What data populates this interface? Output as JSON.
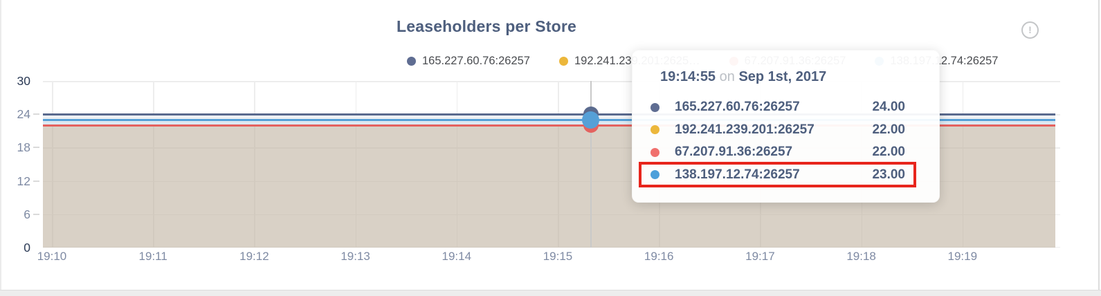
{
  "title": "Leaseholders per Store",
  "info_icon_glyph": "!",
  "legend": {
    "items": [
      {
        "label": "165.227.60.76:26257",
        "color": "#5f6d92"
      },
      {
        "label": "192.241.239.201:2625…",
        "color": "#ecb73b"
      },
      {
        "label": "67.207.91.36:26257",
        "color": "#e4625f"
      },
      {
        "label": "138.197.12.74:26257",
        "color": "#55a0d7"
      }
    ]
  },
  "tooltip": {
    "time": "19:14:55",
    "on_word": "on",
    "date": "Sep 1st, 2017",
    "rows": [
      {
        "label": "165.227.60.76:26257",
        "value": "24.00",
        "color": "#5f6d92"
      },
      {
        "label": "192.241.239.201:26257",
        "value": "22.00",
        "color": "#ecb73b"
      },
      {
        "label": "67.207.91.36:26257",
        "value": "22.00",
        "color": "#f0706d"
      },
      {
        "label": "138.197.12.74:26257",
        "value": "23.00",
        "color": "#4da0da"
      }
    ],
    "highlighted_row_index": 3,
    "highlight_color": "#e8251c"
  },
  "axes": {
    "y_ticks": [
      {
        "label": "30",
        "value": 30,
        "strong": true
      },
      {
        "label": "24",
        "value": 24,
        "strong": false
      },
      {
        "label": "18",
        "value": 18,
        "strong": false
      },
      {
        "label": "12",
        "value": 12,
        "strong": false
      },
      {
        "label": "6",
        "value": 6,
        "strong": false
      },
      {
        "label": "0",
        "value": 0,
        "strong": true
      }
    ],
    "x_ticks": [
      "19:10",
      "19:11",
      "19:12",
      "19:13",
      "19:14",
      "19:15",
      "19:16",
      "19:17",
      "19:18",
      "19:19"
    ]
  },
  "chart_data": {
    "type": "line",
    "title": "Leaseholders per Store",
    "x": [
      "19:10",
      "19:11",
      "19:12",
      "19:13",
      "19:14",
      "19:15",
      "19:16",
      "19:17",
      "19:18",
      "19:19"
    ],
    "xlabel": "",
    "ylabel": "",
    "ylim": [
      0,
      30
    ],
    "yticks": [
      0,
      6,
      12,
      18,
      24,
      30
    ],
    "grid": true,
    "legend_position": "top",
    "series": [
      {
        "name": "165.227.60.76:26257",
        "color": "#5a6a8e",
        "values": [
          24,
          24,
          24,
          24,
          24,
          24,
          24,
          24,
          24,
          24
        ]
      },
      {
        "name": "192.241.239.201:26257",
        "color": "#ecb73b",
        "values": [
          22,
          22,
          22,
          22,
          22,
          22,
          22,
          22,
          22,
          22
        ]
      },
      {
        "name": "67.207.91.36:26257",
        "color": "#e4625f",
        "values": [
          22,
          22,
          22,
          22,
          22,
          22,
          22,
          22,
          22,
          22
        ]
      },
      {
        "name": "138.197.12.74:26257",
        "color": "#55a0d7",
        "values": [
          23,
          23,
          23,
          23,
          23,
          23,
          23,
          23,
          23,
          23
        ]
      }
    ],
    "fill_bands": [
      {
        "from": 24,
        "to": 23,
        "color": "#edf0f4"
      },
      {
        "from": 23,
        "to": 22,
        "color": "#dde8f2"
      },
      {
        "from": 22,
        "to": 0,
        "color": "rgba(194,180,163,0.62)"
      }
    ],
    "hover": {
      "time": "19:14:55",
      "date": "Sep 1st, 2017",
      "values": [
        24,
        22,
        22,
        23
      ],
      "highlighted_series": "138.197.12.74:26257",
      "markers": [
        {
          "series_index": 0,
          "value": 24,
          "diameter": 22
        },
        {
          "series_index": 2,
          "value": 22,
          "diameter": 22
        },
        {
          "series_index": 3,
          "value": 23,
          "diameter": 25
        }
      ]
    }
  }
}
